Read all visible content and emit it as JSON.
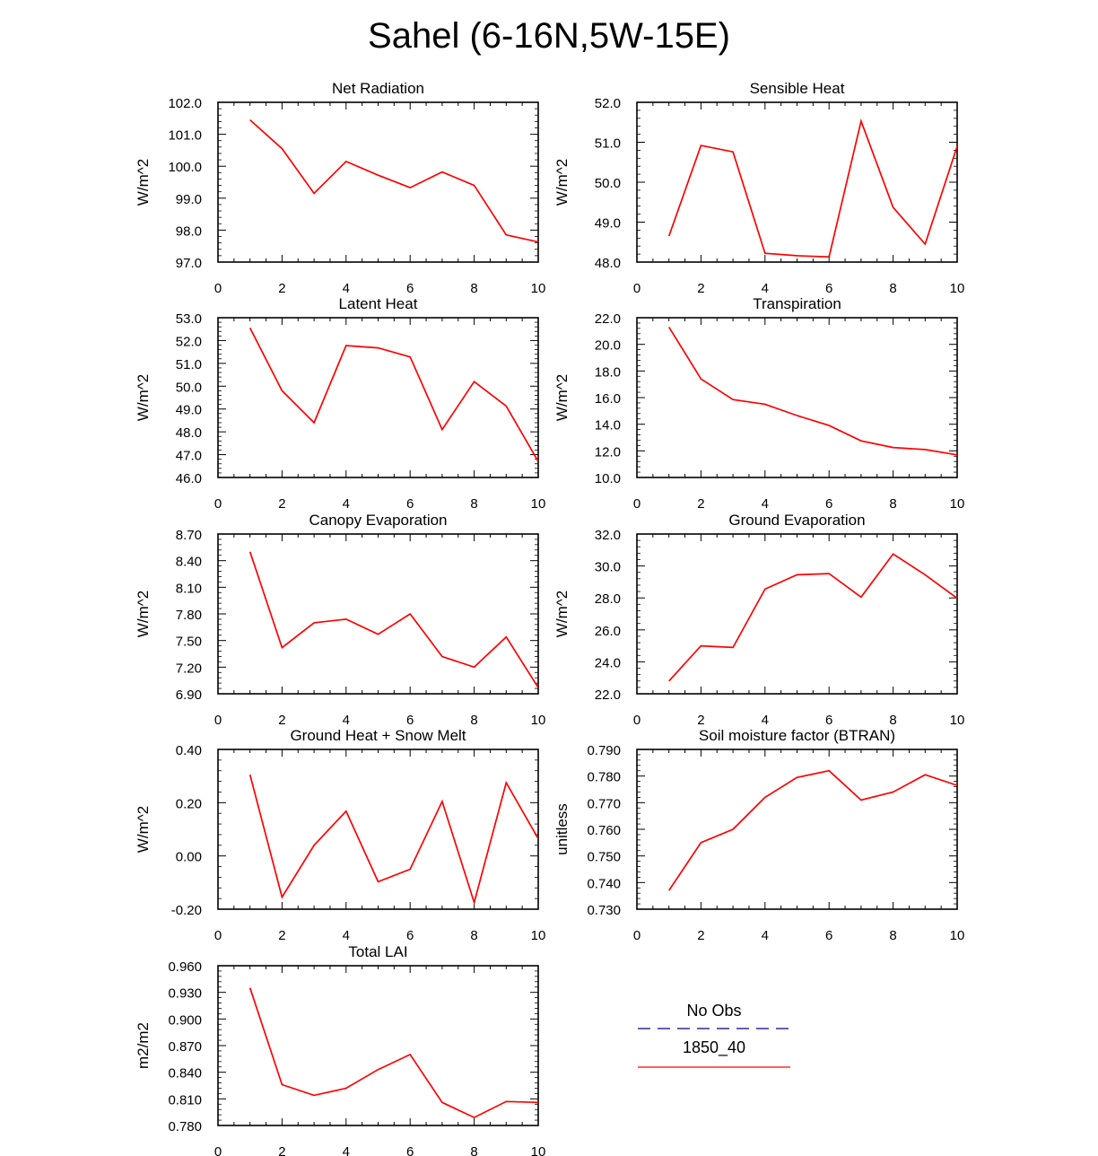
{
  "title": "Sahel (6-16N,5W-15E)",
  "legend": {
    "items": [
      {
        "label": "No Obs",
        "color": "#000080",
        "dash": "dash"
      },
      {
        "label": "1850_40",
        "color": "#ff0000",
        "dash": "solid"
      }
    ]
  },
  "chart_data": [
    {
      "type": "line",
      "title": "Net Radiation",
      "ylabel": "W/m^2",
      "x": [
        1,
        2,
        3,
        4,
        5,
        6,
        7,
        8,
        9,
        10
      ],
      "xlim": [
        0,
        10
      ],
      "xticks": [
        "0",
        "2",
        "4",
        "6",
        "8",
        "10"
      ],
      "ylim": [
        97.0,
        102.0
      ],
      "yticks": [
        "97.0",
        "98.0",
        "99.0",
        "100.0",
        "101.0",
        "102.0"
      ],
      "series": [
        {
          "name": "1850_40",
          "color": "#ff0000",
          "values": [
            101.45,
            100.55,
            99.15,
            100.15,
            99.72,
            99.33,
            99.82,
            99.4,
            97.85,
            97.63
          ]
        }
      ]
    },
    {
      "type": "line",
      "title": "Sensible Heat",
      "ylabel": "W/m^2",
      "x": [
        1,
        2,
        3,
        4,
        5,
        6,
        7,
        8,
        9,
        10
      ],
      "xlim": [
        0,
        10
      ],
      "xticks": [
        "0",
        "2",
        "4",
        "6",
        "8",
        "10"
      ],
      "ylim": [
        48.0,
        52.0
      ],
      "yticks": [
        "48.0",
        "49.0",
        "50.0",
        "51.0",
        "52.0"
      ],
      "series": [
        {
          "name": "1850_40",
          "color": "#ff0000",
          "values": [
            48.65,
            50.92,
            50.76,
            48.22,
            48.16,
            48.13,
            51.53,
            49.37,
            48.45,
            50.9
          ]
        }
      ]
    },
    {
      "type": "line",
      "title": "Latent Heat",
      "ylabel": "W/m^2",
      "x": [
        1,
        2,
        3,
        4,
        5,
        6,
        7,
        8,
        9,
        10
      ],
      "xlim": [
        0,
        10
      ],
      "xticks": [
        "0",
        "2",
        "4",
        "6",
        "8",
        "10"
      ],
      "ylim": [
        46.0,
        53.0
      ],
      "yticks": [
        "46.0",
        "47.0",
        "48.0",
        "49.0",
        "50.0",
        "51.0",
        "52.0",
        "53.0"
      ],
      "series": [
        {
          "name": "1850_40",
          "color": "#ff0000",
          "values": [
            52.55,
            49.8,
            48.4,
            51.78,
            51.68,
            51.28,
            48.1,
            50.2,
            49.13,
            46.7
          ]
        }
      ]
    },
    {
      "type": "line",
      "title": "Transpiration",
      "ylabel": "W/m^2",
      "x": [
        1,
        2,
        3,
        4,
        5,
        6,
        7,
        8,
        9,
        10
      ],
      "xlim": [
        0,
        10
      ],
      "xticks": [
        "0",
        "2",
        "4",
        "6",
        "8",
        "10"
      ],
      "ylim": [
        10.0,
        22.0
      ],
      "yticks": [
        "10.0",
        "12.0",
        "14.0",
        "16.0",
        "18.0",
        "20.0",
        "22.0"
      ],
      "series": [
        {
          "name": "1850_40",
          "color": "#ff0000",
          "values": [
            21.3,
            17.4,
            15.85,
            15.5,
            14.65,
            13.9,
            12.75,
            12.25,
            12.1,
            11.7
          ]
        }
      ]
    },
    {
      "type": "line",
      "title": "Canopy Evaporation",
      "ylabel": "W/m^2",
      "x": [
        1,
        2,
        3,
        4,
        5,
        6,
        7,
        8,
        9,
        10
      ],
      "xlim": [
        0,
        10
      ],
      "xticks": [
        "0",
        "2",
        "4",
        "6",
        "8",
        "10"
      ],
      "ylim": [
        6.9,
        8.7
      ],
      "yticks": [
        "6.90",
        "7.20",
        "7.50",
        "7.80",
        "8.10",
        "8.40",
        "8.70"
      ],
      "series": [
        {
          "name": "1850_40",
          "color": "#ff0000",
          "values": [
            8.5,
            7.42,
            7.7,
            7.74,
            7.57,
            7.8,
            7.32,
            7.2,
            7.54,
            6.97
          ]
        }
      ]
    },
    {
      "type": "line",
      "title": "Ground Evaporation",
      "ylabel": "W/m^2",
      "x": [
        1,
        2,
        3,
        4,
        5,
        6,
        7,
        8,
        9,
        10
      ],
      "xlim": [
        0,
        10
      ],
      "xticks": [
        "0",
        "2",
        "4",
        "6",
        "8",
        "10"
      ],
      "ylim": [
        22.0,
        32.0
      ],
      "yticks": [
        "22.0",
        "24.0",
        "26.0",
        "28.0",
        "30.0",
        "32.0"
      ],
      "series": [
        {
          "name": "1850_40",
          "color": "#ff0000",
          "values": [
            22.8,
            25.0,
            24.9,
            28.55,
            29.45,
            29.52,
            28.05,
            30.75,
            29.45,
            27.98
          ]
        }
      ]
    },
    {
      "type": "line",
      "title": "Ground Heat + Snow Melt",
      "ylabel": "W/m^2",
      "x": [
        1,
        2,
        3,
        4,
        5,
        6,
        7,
        8,
        9,
        10
      ],
      "xlim": [
        0,
        10
      ],
      "xticks": [
        "0",
        "2",
        "4",
        "6",
        "8",
        "10"
      ],
      "ylim": [
        -0.2,
        0.4
      ],
      "yticks": [
        "-0.20",
        "0.00",
        "0.20",
        "0.40"
      ],
      "series": [
        {
          "name": "1850_40",
          "color": "#ff0000",
          "values": [
            0.305,
            -0.155,
            0.04,
            0.168,
            -0.097,
            -0.05,
            0.205,
            -0.175,
            0.275,
            0.065
          ]
        }
      ]
    },
    {
      "type": "line",
      "title": "Soil moisture factor (BTRAN)",
      "ylabel": "unitless",
      "x": [
        1,
        2,
        3,
        4,
        5,
        6,
        7,
        8,
        9,
        10
      ],
      "xlim": [
        0,
        10
      ],
      "xticks": [
        "0",
        "2",
        "4",
        "6",
        "8",
        "10"
      ],
      "ylim": [
        0.73,
        0.79
      ],
      "yticks": [
        "0.730",
        "0.740",
        "0.750",
        "0.760",
        "0.770",
        "0.780",
        "0.790"
      ],
      "series": [
        {
          "name": "1850_40",
          "color": "#ff0000",
          "values": [
            0.737,
            0.755,
            0.76,
            0.772,
            0.7795,
            0.782,
            0.771,
            0.774,
            0.7805,
            0.7765
          ]
        }
      ]
    },
    {
      "type": "line",
      "title": "Total LAI",
      "ylabel": "m2/m2",
      "x": [
        1,
        2,
        3,
        4,
        5,
        6,
        7,
        8,
        9,
        10
      ],
      "xlim": [
        0,
        10
      ],
      "xticks": [
        "0",
        "2",
        "4",
        "6",
        "8",
        "10"
      ],
      "ylim": [
        0.78,
        0.96
      ],
      "yticks": [
        "0.780",
        "0.810",
        "0.840",
        "0.870",
        "0.900",
        "0.930",
        "0.960"
      ],
      "series": [
        {
          "name": "1850_40",
          "color": "#ff0000",
          "values": [
            0.935,
            0.826,
            0.814,
            0.822,
            0.843,
            0.86,
            0.806,
            0.789,
            0.807,
            0.806
          ]
        }
      ]
    }
  ]
}
